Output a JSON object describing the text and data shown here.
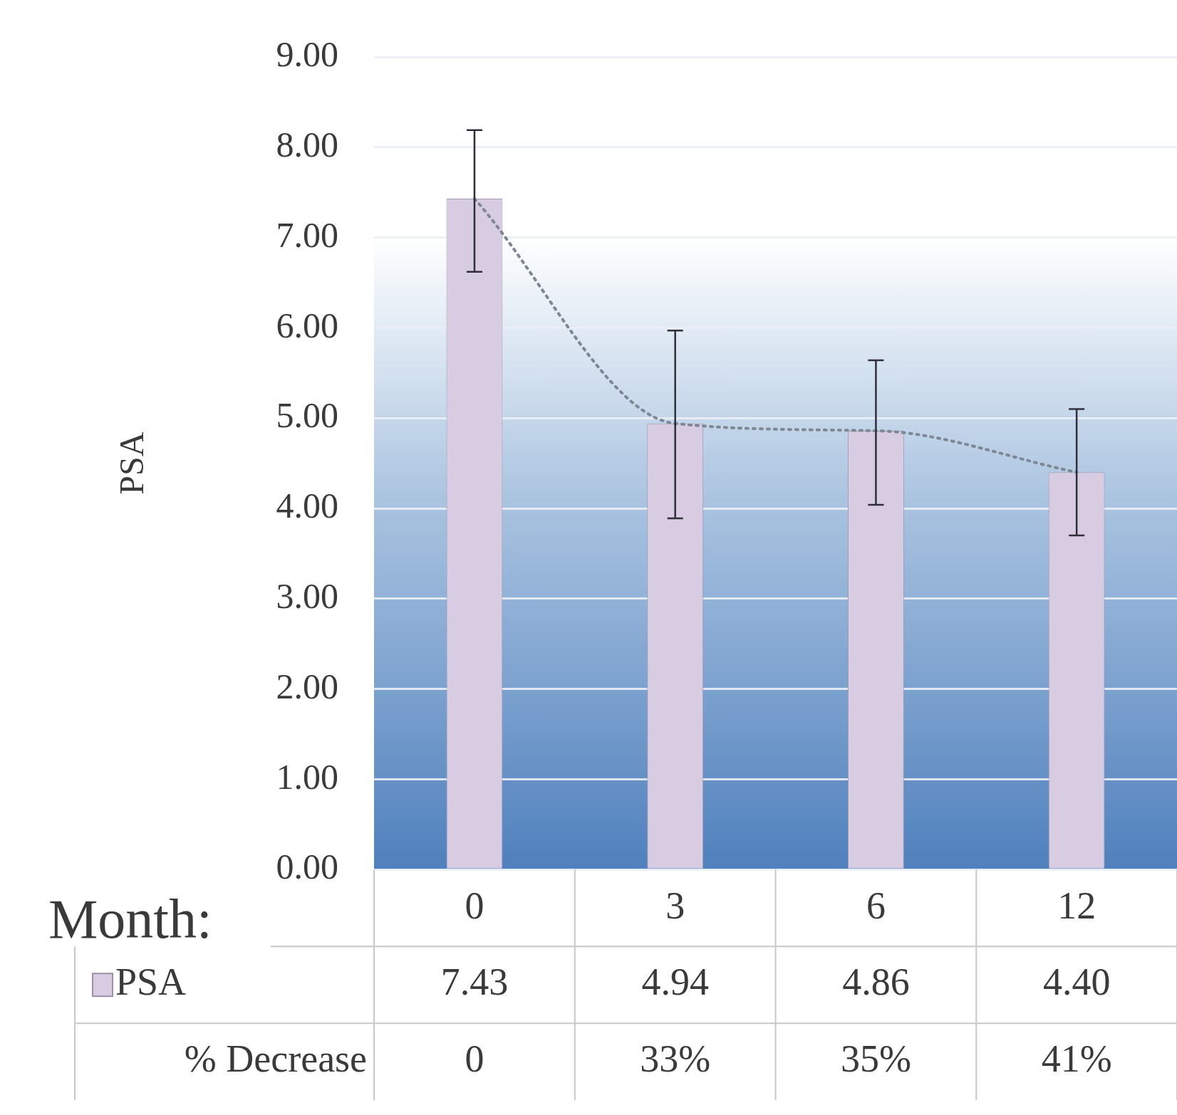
{
  "chart_data": {
    "type": "bar",
    "xlabel": "Month:",
    "ylabel": "PSA",
    "categories": [
      "0",
      "3",
      "6",
      "12"
    ],
    "series": [
      {
        "name": "PSA",
        "color": "#d8cce3",
        "values": [
          7.43,
          4.94,
          4.86,
          4.4
        ],
        "errors": [
          [
            6.62,
            8.19
          ],
          [
            3.89,
            5.97
          ],
          [
            4.04,
            5.64
          ],
          [
            3.7,
            5.1
          ]
        ],
        "value_labels": [
          "7.43",
          "4.94",
          "4.86",
          "4.40"
        ]
      },
      {
        "type": "line",
        "color": "#7d8894",
        "values": [
          7.43,
          4.94,
          4.86,
          4.4
        ],
        "marker": "none",
        "line_style": "dotted"
      }
    ],
    "ylim": [
      0,
      9
    ],
    "yticks": [
      {
        "value": 0,
        "label": "0.00"
      },
      {
        "value": 1,
        "label": "1.00"
      },
      {
        "value": 2,
        "label": "2.00"
      },
      {
        "value": 3,
        "label": "3.00"
      },
      {
        "value": 4,
        "label": "4.00"
      },
      {
        "value": 5,
        "label": "5.00"
      },
      {
        "value": 6,
        "label": "6.00"
      },
      {
        "value": 7,
        "label": "7.00"
      },
      {
        "value": 8,
        "label": "8.00"
      },
      {
        "value": 9,
        "label": "9.00"
      }
    ],
    "grid": "y",
    "legend": "bottom left",
    "annotations": [
      "% Decrease",
      "0",
      "33%",
      "35%",
      "41%"
    ]
  }
}
